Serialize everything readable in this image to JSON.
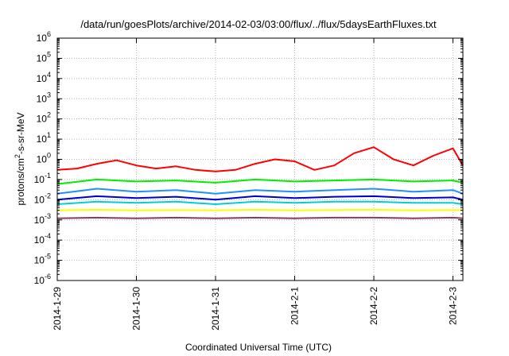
{
  "chart_data": {
    "type": "line",
    "title": "/data/run/goesPlots/archive/2014-02-03/03:00/flux/../flux/5daysEarthFluxes.txt",
    "xlabel": "Coordinated Universal Time (UTC)",
    "ylabel": {
      "pre": "protons/cm",
      "sup": "2",
      "post": "-s-sr-MeV"
    },
    "yscale": "log",
    "ylim_exp": [
      -6,
      6
    ],
    "y_ticks": [
      {
        "base": "10",
        "exp": "-6"
      },
      {
        "base": "10",
        "exp": "-5"
      },
      {
        "base": "10",
        "exp": "-4"
      },
      {
        "base": "10",
        "exp": "-3"
      },
      {
        "base": "10",
        "exp": "-2"
      },
      {
        "base": "10",
        "exp": "-1"
      },
      {
        "base": "10",
        "exp": "0"
      },
      {
        "base": "10",
        "exp": "1"
      },
      {
        "base": "10",
        "exp": "2"
      },
      {
        "base": "10",
        "exp": "3"
      },
      {
        "base": "10",
        "exp": "4"
      },
      {
        "base": "10",
        "exp": "5"
      },
      {
        "base": "10",
        "exp": "6"
      }
    ],
    "x_ticks": [
      "2014-1-29",
      "2014-1-30",
      "2014-1-31",
      "2014-2-1",
      "2014-2-2",
      "2014-2-3"
    ],
    "xlim": [
      "2014-1-29 00:00",
      "2014-2-3 03:00"
    ],
    "grid": true,
    "series": [
      {
        "color": "#ff0000",
        "x": [
          "2014-1-29 00:00",
          "2014-1-29 06:00",
          "2014-1-29 12:00",
          "2014-1-29 18:00",
          "2014-1-30 00:00",
          "2014-1-30 06:00",
          "2014-1-30 12:00",
          "2014-1-30 18:00",
          "2014-1-31 00:00",
          "2014-1-31 06:00",
          "2014-1-31 12:00",
          "2014-1-31 18:00",
          "2014-2-1 00:00",
          "2014-2-1 06:00",
          "2014-2-1 12:00",
          "2014-2-1 18:00",
          "2014-2-2 00:00",
          "2014-2-2 06:00",
          "2014-2-2 12:00",
          "2014-2-2 18:00",
          "2014-2-3 00:00",
          "2014-2-3 03:00"
        ],
        "values": [
          0.3,
          0.35,
          0.6,
          0.9,
          0.5,
          0.35,
          0.45,
          0.3,
          0.25,
          0.3,
          0.6,
          1.0,
          0.8,
          0.3,
          0.5,
          2.0,
          4.0,
          1.0,
          0.5,
          1.5,
          3.5,
          0.5
        ]
      },
      {
        "color": "#00ee00",
        "x": [
          "2014-1-29 00:00",
          "2014-1-29 12:00",
          "2014-1-30 00:00",
          "2014-1-30 12:00",
          "2014-1-31 00:00",
          "2014-1-31 12:00",
          "2014-2-1 00:00",
          "2014-2-1 12:00",
          "2014-2-2 00:00",
          "2014-2-2 12:00",
          "2014-2-3 00:00",
          "2014-2-3 03:00"
        ],
        "values": [
          0.06,
          0.1,
          0.08,
          0.09,
          0.07,
          0.1,
          0.08,
          0.09,
          0.1,
          0.08,
          0.09,
          0.07
        ]
      },
      {
        "color": "#1e90ff",
        "x": [
          "2014-1-29 00:00",
          "2014-1-29 12:00",
          "2014-1-30 00:00",
          "2014-1-30 12:00",
          "2014-1-31 00:00",
          "2014-1-31 12:00",
          "2014-2-1 00:00",
          "2014-2-1 12:00",
          "2014-2-2 00:00",
          "2014-2-2 12:00",
          "2014-2-3 00:00",
          "2014-2-3 03:00"
        ],
        "values": [
          0.02,
          0.035,
          0.025,
          0.03,
          0.02,
          0.03,
          0.025,
          0.03,
          0.035,
          0.025,
          0.03,
          0.02
        ]
      },
      {
        "color": "#0000cd",
        "x": [
          "2014-1-29 00:00",
          "2014-1-29 12:00",
          "2014-1-30 00:00",
          "2014-1-30 12:00",
          "2014-1-31 00:00",
          "2014-1-31 12:00",
          "2014-2-1 00:00",
          "2014-2-1 12:00",
          "2014-2-2 00:00",
          "2014-2-2 12:00",
          "2014-2-3 00:00",
          "2014-2-3 03:00"
        ],
        "values": [
          0.01,
          0.015,
          0.012,
          0.014,
          0.01,
          0.015,
          0.012,
          0.014,
          0.015,
          0.012,
          0.013,
          0.01
        ]
      },
      {
        "color": "#00ced1",
        "x": [
          "2014-1-29 00:00",
          "2014-1-29 12:00",
          "2014-1-30 00:00",
          "2014-1-30 12:00",
          "2014-1-31 00:00",
          "2014-1-31 12:00",
          "2014-2-1 00:00",
          "2014-2-1 12:00",
          "2014-2-2 00:00",
          "2014-2-2 12:00",
          "2014-2-3 00:00",
          "2014-2-3 03:00"
        ],
        "values": [
          0.006,
          0.008,
          0.007,
          0.008,
          0.006,
          0.008,
          0.007,
          0.008,
          0.008,
          0.007,
          0.007,
          0.006
        ]
      },
      {
        "color": "#ffff00",
        "x": [
          "2014-1-29 00:00",
          "2014-1-29 12:00",
          "2014-1-30 00:00",
          "2014-1-30 12:00",
          "2014-1-31 00:00",
          "2014-1-31 12:00",
          "2014-2-1 00:00",
          "2014-2-1 12:00",
          "2014-2-2 00:00",
          "2014-2-2 12:00",
          "2014-2-3 00:00",
          "2014-2-3 03:00"
        ],
        "values": [
          0.003,
          0.0032,
          0.003,
          0.0031,
          0.003,
          0.0032,
          0.003,
          0.0031,
          0.0032,
          0.003,
          0.0031,
          0.003
        ]
      },
      {
        "color": "#8b3a62",
        "x": [
          "2014-1-29 00:00",
          "2014-1-29 12:00",
          "2014-1-30 00:00",
          "2014-1-30 12:00",
          "2014-1-31 00:00",
          "2014-1-31 12:00",
          "2014-2-1 00:00",
          "2014-2-1 12:00",
          "2014-2-2 00:00",
          "2014-2-2 12:00",
          "2014-2-3 00:00",
          "2014-2-3 03:00"
        ],
        "values": [
          0.0012,
          0.0013,
          0.0012,
          0.0013,
          0.0012,
          0.0013,
          0.0012,
          0.0013,
          0.0013,
          0.0012,
          0.0013,
          0.0012
        ]
      }
    ]
  }
}
